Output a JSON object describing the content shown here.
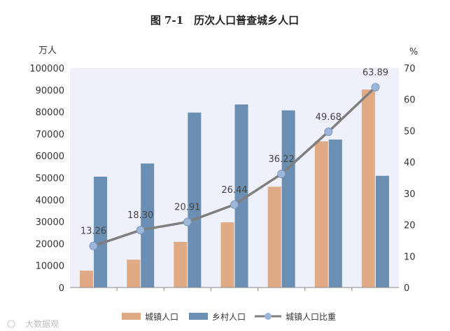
{
  "title": "图 7-1　历次人口普查城乡人口",
  "watermark": "大数据观",
  "colors": {
    "urban": "#E0AA84",
    "rural": "#6A8FB3",
    "ratio_line": "#7F7F7F",
    "ratio_marker": "#9DB7DA",
    "plot_bg": "#EEF0FA"
  },
  "chart_data": {
    "type": "bar",
    "title": "图 7-1　历次人口普查城乡人口",
    "categories": [
      "",
      "",
      "",
      "",
      "",
      "",
      ""
    ],
    "y_left": {
      "unit": "万人",
      "lim": [
        0,
        100000
      ],
      "ticks": [
        0,
        10000,
        20000,
        30000,
        40000,
        50000,
        60000,
        70000,
        80000,
        90000,
        100000
      ]
    },
    "y_right": {
      "unit": "%",
      "lim": [
        0,
        70
      ],
      "ticks": [
        0,
        10,
        20,
        30,
        40,
        50,
        60,
        70
      ]
    },
    "series": [
      {
        "name": "城镇人口",
        "type": "bar",
        "axis": "left",
        "values": [
          7700,
          12700,
          20800,
          29700,
          45900,
          66600,
          90200
        ]
      },
      {
        "name": "乡村人口",
        "type": "bar",
        "axis": "left",
        "values": [
          50500,
          56500,
          79700,
          83400,
          80700,
          67400,
          50900
        ]
      },
      {
        "name": "城镇人口比重",
        "type": "line",
        "axis": "right",
        "values": [
          13.26,
          18.3,
          20.91,
          26.44,
          36.22,
          49.68,
          63.89
        ],
        "labels": [
          "13.26",
          "18.30",
          "20.91",
          "26.44",
          "36.22",
          "49.68",
          "63.89"
        ]
      }
    ],
    "grid": false,
    "legend_position": "bottom"
  }
}
